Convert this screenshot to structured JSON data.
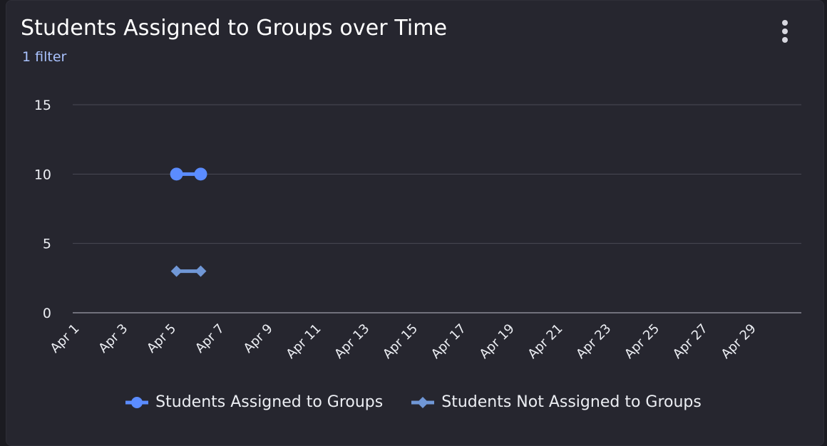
{
  "title": "Students Assigned to Groups over Time",
  "filter_label": "1 filter",
  "menu_icon": "kebab-menu-icon",
  "colors": {
    "background": "#26262f",
    "grid": "#4a4a55",
    "axis_text": "#eceef3",
    "series_assigned": "#5b8cff",
    "series_not_assigned": "#7097d6"
  },
  "chart_data": {
    "type": "line",
    "xlabel": "",
    "ylabel": "",
    "ylim": [
      0,
      15
    ],
    "yticks": [
      "0",
      "5",
      "10",
      "15"
    ],
    "xticks": [
      "Apr 1",
      "Apr 3",
      "Apr 5",
      "Apr 7",
      "Apr 9",
      "Apr 11",
      "Apr 13",
      "Apr 15",
      "Apr 17",
      "Apr 19",
      "Apr 21",
      "Apr 23",
      "Apr 25",
      "Apr 27",
      "Apr 29"
    ],
    "x_days": [
      1,
      30
    ],
    "grid": true,
    "legend": "bottom",
    "series": [
      {
        "name": "Students Assigned to Groups",
        "marker": "circle",
        "x": [
          "Apr 5",
          "Apr 6"
        ],
        "values": [
          10,
          10
        ]
      },
      {
        "name": "Students Not Assigned to Groups",
        "marker": "diamond",
        "x": [
          "Apr 5",
          "Apr 6"
        ],
        "values": [
          3,
          3
        ]
      }
    ]
  }
}
